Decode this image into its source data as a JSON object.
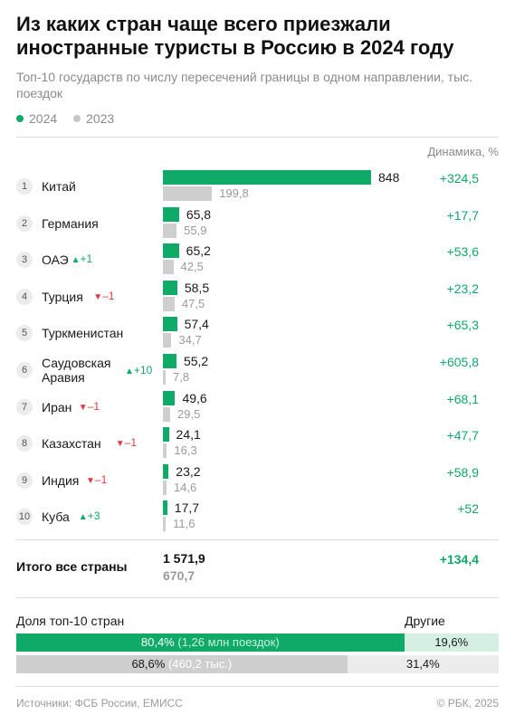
{
  "header": {
    "title": "Из каких стран чаще всего приезжали иностранные туристы в Россию в 2024 году",
    "subtitle": "Топ-10 государств по числу пересечений границы в одном направлении, тыс. поездок"
  },
  "legend": {
    "current": "2024",
    "previous": "2023"
  },
  "dynamics_header": "Динамика, %",
  "colors": {
    "current": "#0fa968",
    "previous": "#cfcfcf",
    "up": "#0fa968",
    "down": "#e0393e"
  },
  "chart_data": {
    "type": "bar",
    "orientation": "horizontal",
    "categories": [
      "Китай",
      "Германия",
      "ОАЭ",
      "Турция",
      "Туркменистан",
      "Саудовская Аравия",
      "Иран",
      "Казахстан",
      "Индия",
      "Куба"
    ],
    "series": [
      {
        "name": "2024",
        "values": [
          848,
          65.8,
          65.2,
          58.5,
          57.4,
          55.2,
          49.6,
          24.1,
          23.2,
          17.7
        ]
      },
      {
        "name": "2023",
        "values": [
          199.8,
          55.9,
          42.5,
          47.5,
          34.7,
          7.8,
          29.5,
          16.3,
          14.6,
          11.6
        ]
      }
    ],
    "rows": [
      {
        "rank": "1",
        "country": "Китай",
        "change": "",
        "dir": "",
        "v2024": 848,
        "v2024_label": "848",
        "v2023": 199.8,
        "v2023_label": "199,8",
        "dynamics": "+324,5"
      },
      {
        "rank": "2",
        "country": "Германия",
        "change": "",
        "dir": "",
        "v2024": 65.8,
        "v2024_label": "65,8",
        "v2023": 55.9,
        "v2023_label": "55,9",
        "dynamics": "+17,7"
      },
      {
        "rank": "3",
        "country": "ОАЭ",
        "change": "+1",
        "dir": "up",
        "v2024": 65.2,
        "v2024_label": "65,2",
        "v2023": 42.5,
        "v2023_label": "42,5",
        "dynamics": "+53,6"
      },
      {
        "rank": "4",
        "country": "Турция",
        "change": "–1",
        "dir": "down",
        "v2024": 58.5,
        "v2024_label": "58,5",
        "v2023": 47.5,
        "v2023_label": "47,5",
        "dynamics": "+23,2"
      },
      {
        "rank": "5",
        "country": "Туркменистан",
        "change": "",
        "dir": "",
        "v2024": 57.4,
        "v2024_label": "57,4",
        "v2023": 34.7,
        "v2023_label": "34,7",
        "dynamics": "+65,3"
      },
      {
        "rank": "6",
        "country": "Саудовская Аравия",
        "change": "+10",
        "dir": "up",
        "v2024": 55.2,
        "v2024_label": "55,2",
        "v2023": 7.8,
        "v2023_label": "7,8",
        "dynamics": "+605,8"
      },
      {
        "rank": "7",
        "country": "Иран",
        "change": "–1",
        "dir": "down",
        "v2024": 49.6,
        "v2024_label": "49,6",
        "v2023": 29.5,
        "v2023_label": "29,5",
        "dynamics": "+68,1"
      },
      {
        "rank": "8",
        "country": "Казахстан",
        "change": "–1",
        "dir": "down",
        "v2024": 24.1,
        "v2024_label": "24,1",
        "v2023": 16.3,
        "v2023_label": "16,3",
        "dynamics": "+47,7"
      },
      {
        "rank": "9",
        "country": "Индия",
        "change": "–1",
        "dir": "down",
        "v2024": 23.2,
        "v2024_label": "23,2",
        "v2023": 14.6,
        "v2023_label": "14,6",
        "dynamics": "+58,9"
      },
      {
        "rank": "10",
        "country": "Куба",
        "change": "+3",
        "dir": "up",
        "v2024": 17.7,
        "v2024_label": "17,7",
        "v2023": 11.6,
        "v2023_label": "11,6",
        "dynamics": "+52"
      }
    ],
    "total": {
      "label": "Итого все страны",
      "v2024_label": "1 571,9",
      "v2023_label": "670,7",
      "dynamics": "+134,4"
    },
    "share": {
      "label": "Доля топ-10 стран",
      "others_label": "Другие",
      "current": {
        "top10": 80.4,
        "top10_label": "80,4%",
        "note": "(1,26 млн поездок)",
        "others_label": "19,6%"
      },
      "previous": {
        "top10": 68.6,
        "top10_label": "68,6%",
        "note": "(460,2 тыс.)",
        "others_label": "31,4%"
      }
    }
  },
  "footer": {
    "sources": "Источники: ФСБ России, ЕМИСС",
    "copyright": "© РБК, 2025"
  }
}
